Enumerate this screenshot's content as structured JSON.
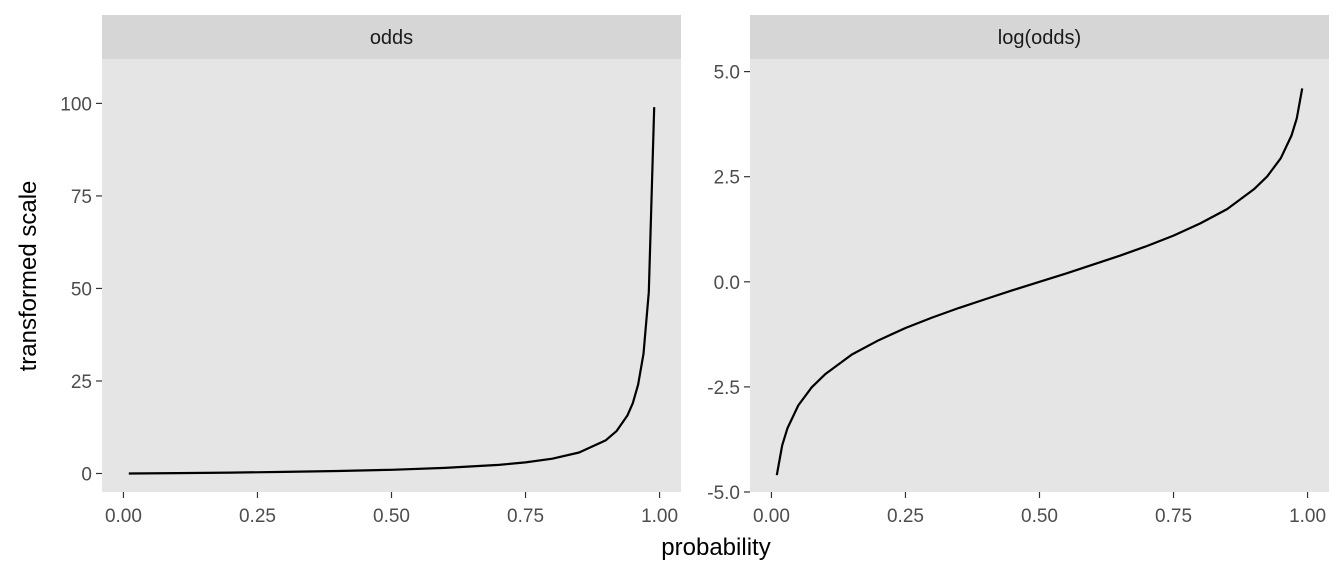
{
  "chart_data": {
    "type": "line",
    "xlabel": "probability",
    "ylabel": "transformed scale",
    "panels": [
      {
        "strip": "odds",
        "xlim": [
          -0.04,
          1.04
        ],
        "ylim": [
          -5,
          112
        ],
        "x_ticks": [
          0,
          0.25,
          0.5,
          0.75,
          1
        ],
        "x_tick_labels": [
          "0.00",
          "0.25",
          "0.50",
          "0.75",
          "1.00"
        ],
        "y_ticks": [
          0,
          25,
          50,
          75,
          100
        ],
        "y_tick_labels": [
          "0",
          "25",
          "50",
          "75",
          "100"
        ],
        "x": [
          0.01,
          0.1,
          0.2,
          0.3,
          0.4,
          0.5,
          0.6,
          0.7,
          0.75,
          0.8,
          0.85,
          0.9,
          0.92,
          0.94,
          0.95,
          0.96,
          0.97,
          0.98,
          0.99
        ],
        "y": [
          0.01,
          0.11,
          0.25,
          0.43,
          0.67,
          1.0,
          1.5,
          2.33,
          3.0,
          4.0,
          5.67,
          9.0,
          11.5,
          15.67,
          19.0,
          24.0,
          32.33,
          49.0,
          99.0
        ]
      },
      {
        "strip": "log(odds)",
        "xlim": [
          -0.04,
          1.04
        ],
        "ylim": [
          -5,
          5.3
        ],
        "x_ticks": [
          0,
          0.25,
          0.5,
          0.75,
          1
        ],
        "x_tick_labels": [
          "0.00",
          "0.25",
          "0.50",
          "0.75",
          "1.00"
        ],
        "y_ticks": [
          -5,
          -2.5,
          0,
          2.5,
          5
        ],
        "y_tick_labels": [
          "-5.0",
          "-2.5",
          "0.0",
          "2.5",
          "5.0"
        ],
        "x": [
          0.01,
          0.02,
          0.03,
          0.05,
          0.075,
          0.1,
          0.15,
          0.2,
          0.25,
          0.3,
          0.35,
          0.4,
          0.45,
          0.5,
          0.55,
          0.6,
          0.65,
          0.7,
          0.75,
          0.8,
          0.85,
          0.9,
          0.925,
          0.95,
          0.97,
          0.98,
          0.99
        ],
        "y": [
          -4.6,
          -3.89,
          -3.48,
          -2.94,
          -2.51,
          -2.2,
          -1.73,
          -1.39,
          -1.1,
          -0.85,
          -0.62,
          -0.41,
          -0.2,
          0.0,
          0.2,
          0.41,
          0.62,
          0.85,
          1.1,
          1.39,
          1.73,
          2.2,
          2.51,
          2.94,
          3.48,
          3.89,
          4.6
        ]
      }
    ]
  }
}
